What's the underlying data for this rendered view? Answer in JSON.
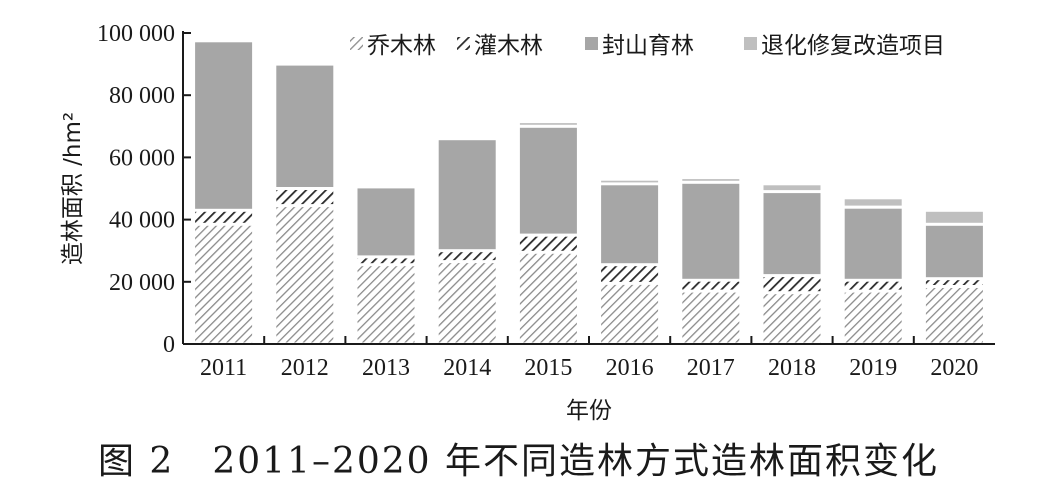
{
  "caption": "图 2　2011–2020 年不同造林方式造林面积变化",
  "chart_data": {
    "type": "bar",
    "stacked": true,
    "categories": [
      "2011",
      "2012",
      "2013",
      "2014",
      "2015",
      "2016",
      "2017",
      "2018",
      "2019",
      "2020"
    ],
    "series": [
      {
        "name": "乔木林",
        "pattern": "light-diagonal-hatch",
        "values": [
          38500,
          44500,
          25500,
          26500,
          29500,
          19500,
          17000,
          16500,
          17000,
          18500
        ]
      },
      {
        "name": "灌木林",
        "pattern": "dark-diagonal-hatch",
        "values": [
          4500,
          5500,
          2500,
          3500,
          5500,
          6000,
          3500,
          5500,
          3500,
          2500
        ]
      },
      {
        "name": "封山育林",
        "color": "#a6a6a6",
        "values": [
          54500,
          40000,
          22500,
          36000,
          35000,
          26000,
          31500,
          27000,
          23500,
          17500
        ]
      },
      {
        "name": "退化修复改造项目",
        "color": "#bfbfbf",
        "values": [
          0,
          0,
          0,
          0,
          1500,
          1500,
          1500,
          2500,
          3000,
          4500
        ]
      }
    ],
    "xlabel": "年份",
    "ylabel": "造林面积 /hm²",
    "ylim": [
      0,
      100000
    ],
    "yticks": [
      0,
      20000,
      40000,
      60000,
      80000,
      100000
    ],
    "ytick_labels": [
      "0",
      "20 000",
      "40 000",
      "60 000",
      "80 000",
      "100 000"
    ],
    "grid": false,
    "legend_position": "top-right"
  }
}
